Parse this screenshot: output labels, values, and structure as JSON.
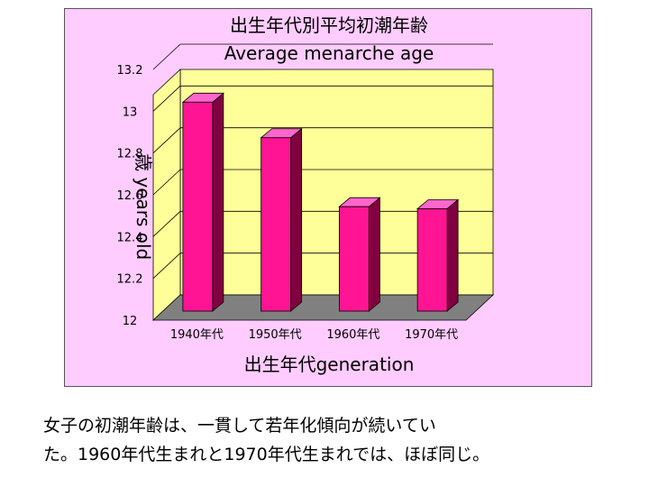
{
  "chart_data": {
    "type": "bar",
    "title": "出生年代別平均初潮年齢",
    "subtitle": "Average menarche age",
    "xlabel": "出生年代generation",
    "ylabel": "歳 years old",
    "categories": [
      "1940年代",
      "1950年代",
      "1960年代",
      "1970年代"
    ],
    "values": [
      13.0,
      12.83,
      12.5,
      12.49
    ],
    "ylim": [
      12,
      13.2
    ],
    "yticks": [
      "12",
      "12.2",
      "12.4",
      "12.6",
      "12.8",
      "13",
      "13.2"
    ],
    "grid": true,
    "legend": "none"
  },
  "colors": {
    "panel_background": "#ffccff",
    "plot_background": "#ffff99",
    "floor": "#808080",
    "bar_front": "#ff1493",
    "bar_side": "#800040",
    "bar_top": "#ff66cc"
  },
  "caption": {
    "line1": "女子の初潮年齢は、一貫して若年化傾向が続いてい",
    "line2": "た。1960年代生まれと1970年代生まれでは、ほぼ同じ。"
  }
}
